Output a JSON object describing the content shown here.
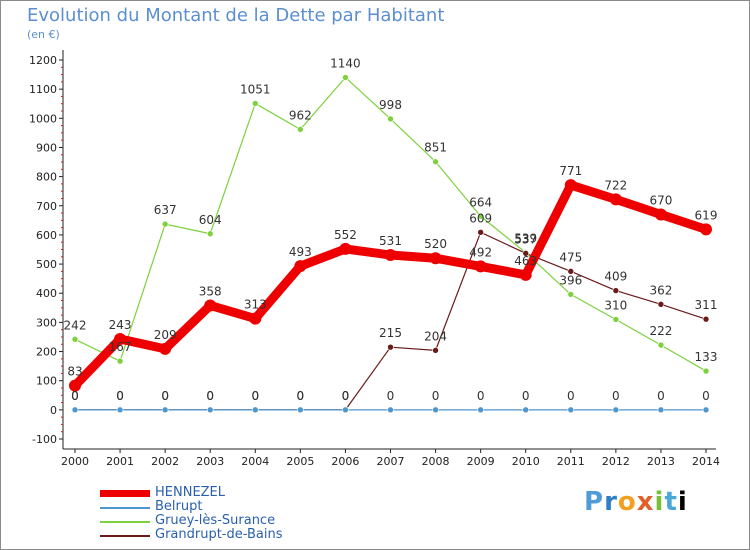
{
  "title": "Evolution du Montant de la Dette par Habitant",
  "subtitle": "(en €)",
  "logo": [
    "P",
    "r",
    "o",
    "x",
    "i",
    "t",
    "i"
  ],
  "chart_data": {
    "type": "line",
    "title": "Evolution du Montant de la Dette par Habitant",
    "ylabel": "(en €)",
    "xlabel": "",
    "x": [
      2000,
      2001,
      2002,
      2003,
      2004,
      2005,
      2006,
      2007,
      2008,
      2009,
      2010,
      2011,
      2012,
      2013,
      2014
    ],
    "ylim": [
      -100,
      1200
    ],
    "yticks": [
      -100,
      0,
      100,
      200,
      300,
      400,
      500,
      600,
      700,
      800,
      900,
      1000,
      1100,
      1200
    ],
    "grid": false,
    "legend_position": "bottom-left",
    "series": [
      {
        "name": "HENNEZEL",
        "color": "#ee0000",
        "values": [
          83,
          243,
          209,
          358,
          313,
          493,
          552,
          531,
          520,
          492,
          463,
          771,
          722,
          670,
          619
        ],
        "labels": [
          "83",
          "243",
          "209",
          "358",
          "313",
          "493",
          "552",
          "531",
          "520",
          "492",
          "463",
          "771",
          "722",
          "670",
          "619"
        ]
      },
      {
        "name": "Belrupt",
        "color": "#4e96cc",
        "values": [
          0,
          0,
          0,
          0,
          0,
          0,
          0,
          0,
          0,
          0,
          0,
          0,
          0,
          0,
          0
        ],
        "labels": [
          "0",
          "0",
          "0",
          "0",
          "0",
          "0",
          "0",
          "0",
          "0",
          "0",
          "0",
          "0",
          "0",
          "0",
          "0"
        ]
      },
      {
        "name": "Gruey-lès-Surance",
        "color": "#7dd13e",
        "values": [
          242,
          167,
          637,
          604,
          1051,
          962,
          1140,
          998,
          851,
          664,
          539,
          396,
          310,
          222,
          133
        ],
        "labels": [
          "242",
          "167",
          "637",
          "604",
          "1051",
          "962",
          "1140",
          "998",
          "851",
          "664",
          "539",
          "396",
          "310",
          "222",
          "133"
        ]
      },
      {
        "name": "Grandrupt-de-Bains",
        "color": "#6b1a1a",
        "values": [
          0,
          0,
          0,
          0,
          0,
          0,
          0,
          215,
          204,
          609,
          537,
          475,
          409,
          362,
          311
        ],
        "labels": [
          "0",
          "0",
          "0",
          "0",
          "0",
          "0",
          "0",
          "215",
          "204",
          "609",
          "537",
          "475",
          "409",
          "362",
          "311"
        ]
      }
    ]
  }
}
